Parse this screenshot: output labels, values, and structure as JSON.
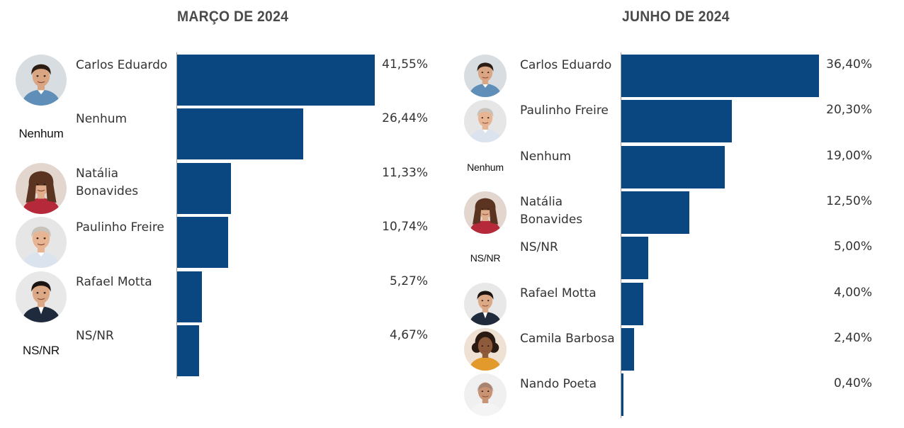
{
  "chart_data": [
    {
      "type": "bar",
      "orientation": "horizontal",
      "title": "MARÇO DE 2024",
      "xlim": [
        0,
        41.55
      ],
      "categories": [
        "Carlos Eduardo",
        "Nenhum",
        "Natália Bonavides",
        "Paulinho Freire",
        "Rafael Motta",
        "NS/NR"
      ],
      "values": [
        41.55,
        26.44,
        11.33,
        10.74,
        5.27,
        4.67
      ],
      "value_labels": [
        "41,55%",
        "26,44%",
        "11,33%",
        "10,74%",
        "5,27%",
        "4,67%"
      ],
      "avatars": [
        "photo-carlos",
        "text",
        "photo-natalia",
        "photo-paulinho",
        "photo-rafael",
        "text"
      ],
      "avatar_text": [
        "",
        "Nenhum",
        "",
        "",
        "",
        "NS/NR"
      ],
      "bar_color": "#0a4780"
    },
    {
      "type": "bar",
      "orientation": "horizontal",
      "title": "JUNHO DE 2024",
      "xlim": [
        0,
        36.4
      ],
      "categories": [
        "Carlos Eduardo",
        "Paulinho Freire",
        "Nenhum",
        "Natália Bonavides",
        "NS/NR",
        "Rafael Motta",
        "Camila Barbosa",
        "Nando Poeta"
      ],
      "values": [
        36.4,
        20.3,
        19.0,
        12.5,
        5.0,
        4.0,
        2.4,
        0.4
      ],
      "value_labels": [
        "36,40%",
        "20,30%",
        "19,00%",
        "12,50%",
        "5,00%",
        "4,00%",
        "2,40%",
        "0,40%"
      ],
      "avatars": [
        "photo-carlos",
        "photo-paulinho",
        "text",
        "photo-natalia",
        "text",
        "photo-rafael",
        "photo-camila",
        "photo-nando"
      ],
      "avatar_text": [
        "",
        "",
        "Nenhum",
        "",
        "NS/NR",
        "",
        "",
        ""
      ],
      "bar_color": "#0a4780"
    }
  ]
}
